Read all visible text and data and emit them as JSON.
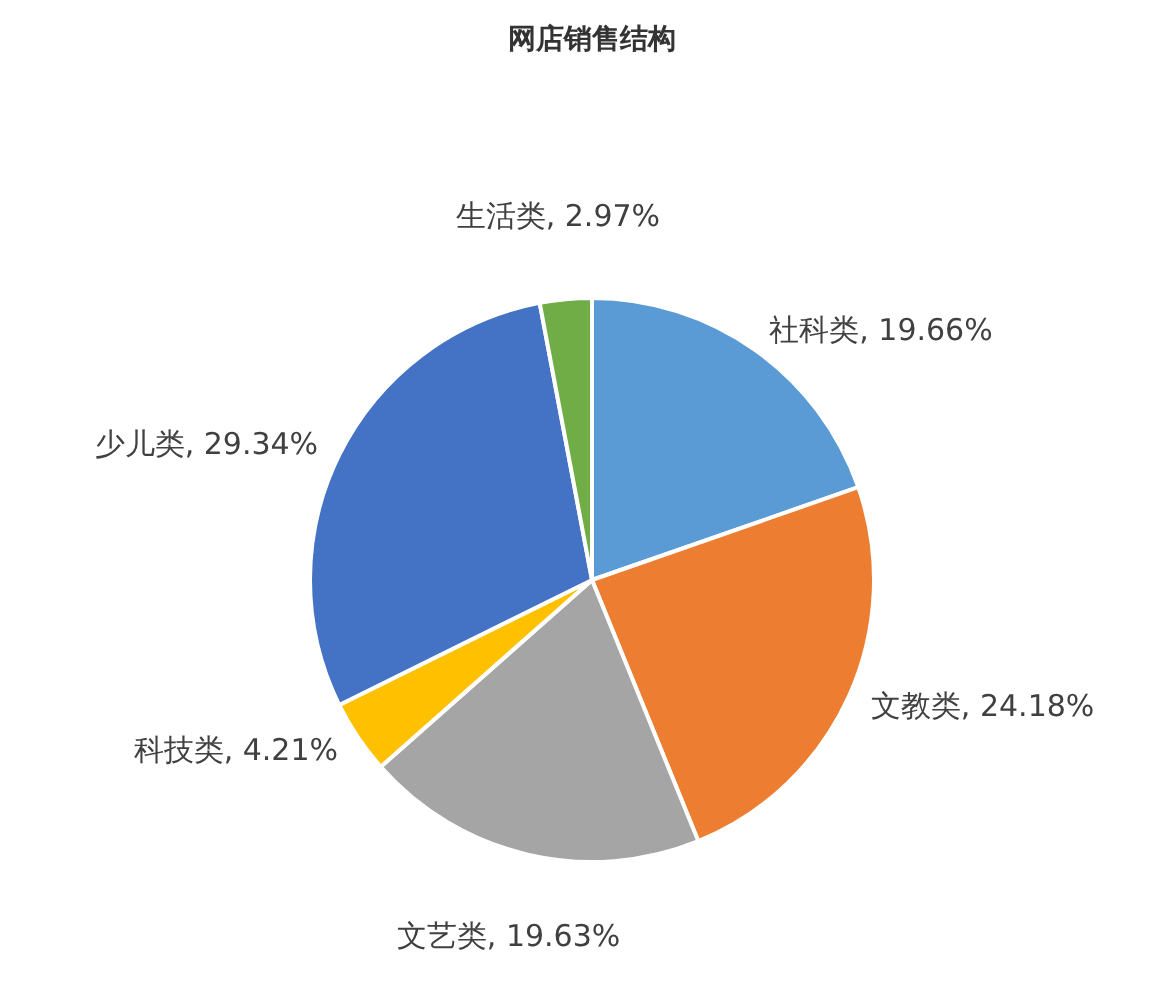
{
  "chart_data": {
    "type": "pie",
    "title": "网店销售结构",
    "categories": [
      "社科类",
      "文教类",
      "文艺类",
      "科技类",
      "少儿类",
      "生活类"
    ],
    "values": [
      19.66,
      24.18,
      19.63,
      4.21,
      29.34,
      2.97
    ],
    "colors": [
      "#5b9bd5",
      "#ed7d31",
      "#a5a5a5",
      "#ffc000",
      "#4472c4",
      "#70ad47"
    ],
    "value_labels": [
      "19.66%",
      "24.18%",
      "19.63%",
      "4.21%",
      "29.34%",
      "2.97%"
    ],
    "legend": false
  }
}
